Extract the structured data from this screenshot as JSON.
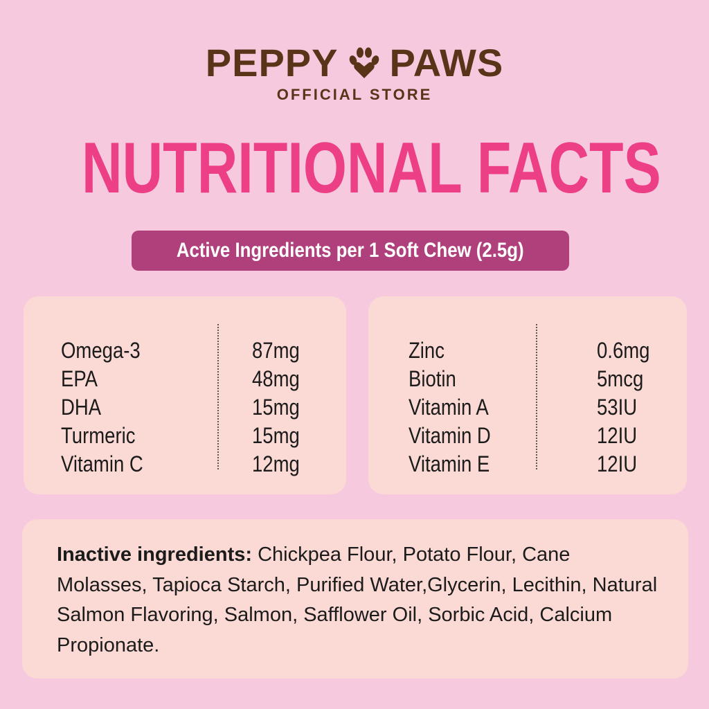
{
  "brand": {
    "name_left": "PEPPY",
    "name_right": "PAWS",
    "logo_icon": "paw-heart-icon",
    "subtitle": "OFFICIAL STORE"
  },
  "title": "NUTRITIONAL FACTS",
  "subtitle_pill": "Active Ingredients per 1 Soft Chew (2.5g)",
  "colors": {
    "background": "#f7c9de",
    "panel": "#fbd9d4",
    "brand": "#5b3319",
    "title": "#ec3f86",
    "pill": "#b0407c"
  },
  "active_left": [
    {
      "name": "Omega-3",
      "amount": "87mg"
    },
    {
      "name": "EPA",
      "amount": "48mg"
    },
    {
      "name": "DHA",
      "amount": "15mg"
    },
    {
      "name": "Turmeric",
      "amount": "15mg"
    },
    {
      "name": "Vitamin C",
      "amount": "12mg"
    }
  ],
  "active_right": [
    {
      "name": "Zinc",
      "amount": "0.6mg"
    },
    {
      "name": "Biotin",
      "amount": "5mcg"
    },
    {
      "name": "Vitamin A",
      "amount": "53IU"
    },
    {
      "name": "Vitamin D",
      "amount": "12IU"
    },
    {
      "name": "Vitamin E",
      "amount": "12IU"
    }
  ],
  "inactive": {
    "label": "Inactive ingredients:",
    "text": " Chickpea Flour, Potato Flour, Cane Molasses, Tapioca Starch, Purified Water,Glycerin, Lecithin, Natural Salmon Flavoring, Salmon, Safflower Oil, Sorbic Acid, Calcium Propionate."
  }
}
